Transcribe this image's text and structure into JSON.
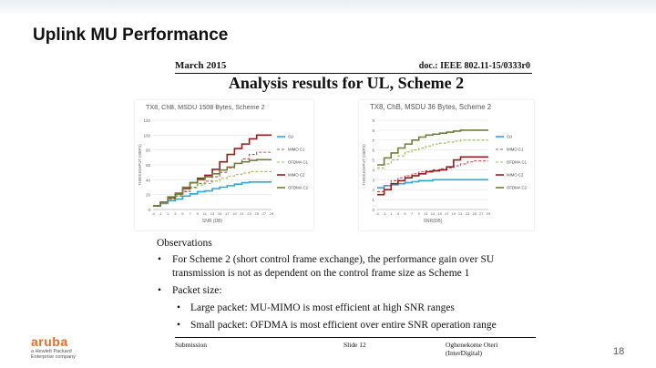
{
  "slide": {
    "title": "Uplink MU Performance",
    "page_number": "18",
    "logo": {
      "word": "aruba",
      "sub1": "a Hewlett Packard",
      "sub2": "Enterprise company"
    }
  },
  "doc": {
    "date": "March 2015",
    "doc_id": "doc.: IEEE 802.11-15/0333r0",
    "heading": "Analysis results for UL, Scheme 2",
    "footer": {
      "left": "Submission",
      "middle": "Slide 12",
      "right": "Oghenekome Oteri (InterDigital)"
    }
  },
  "observations": {
    "title": "Observations",
    "bullets": [
      {
        "text": "For Scheme 2 (short control frame exchange), the performance gain over SU transmission is not as dependent on the control frame size as Scheme 1"
      },
      {
        "text": "Packet size:"
      }
    ],
    "sub_bullets": [
      "Large packet: MU-MIMO is most efficient at high SNR ranges",
      "Small packet: OFDMA is most efficient over entire SNR operation range"
    ]
  },
  "colors": {
    "SU": "#2aa8df",
    "MIMO C1": "#c0504d",
    "OFDMA C1": "#9bbb59",
    "MIMO C2": "#9b1b1b",
    "OFDMA C2": "#6e7f3a"
  },
  "chart_data": [
    {
      "type": "line",
      "title": "TX8, ChB, MSDU 1508 Bytes, Scheme 2",
      "xlabel": "SNR (DB)",
      "ylabel": "THROUGHPUT (MBPS)",
      "x": [
        "-3",
        "-1",
        "1",
        "3",
        "5",
        "7",
        "9",
        "11",
        "13",
        "15",
        "17",
        "19",
        "21",
        "23",
        "25",
        "27",
        "29"
      ],
      "ylim": [
        0,
        120
      ],
      "yticks": [
        "0",
        "20",
        "40",
        "60",
        "80",
        "100",
        "120"
      ],
      "legend": "right",
      "series": [
        {
          "name": "SU",
          "values": [
            5,
            8,
            12,
            14,
            18,
            21,
            24,
            25,
            28,
            30,
            32,
            34,
            36,
            37,
            37,
            37,
            37
          ]
        },
        {
          "name": "MIMO C1",
          "values": [
            5,
            9,
            14,
            18,
            24,
            30,
            35,
            38,
            44,
            50,
            56,
            62,
            68,
            74,
            77,
            77,
            77
          ]
        },
        {
          "name": "OFDMA C1",
          "values": [
            5,
            9,
            15,
            19,
            25,
            29,
            33,
            35,
            38,
            42,
            45,
            47,
            49,
            51,
            51,
            51,
            51
          ]
        },
        {
          "name": "MIMO C2",
          "values": [
            5,
            10,
            16,
            21,
            28,
            36,
            42,
            46,
            54,
            64,
            74,
            82,
            88,
            95,
            100,
            100,
            100
          ]
        },
        {
          "name": "OFDMA C2",
          "values": [
            5,
            10,
            17,
            22,
            30,
            36,
            40,
            44,
            48,
            53,
            57,
            62,
            64,
            66,
            67,
            67,
            67
          ]
        }
      ]
    },
    {
      "type": "line",
      "title": "TX8, ChB, MSDU 36 Bytes, Scheme 2",
      "xlabel": "SNR(DB)",
      "ylabel": "THROUGHPUT (MBPS)",
      "x": [
        "-3",
        "-1",
        "1",
        "3",
        "5",
        "7",
        "9",
        "11",
        "13",
        "15",
        "17",
        "19",
        "21",
        "23",
        "25",
        "27",
        "29"
      ],
      "ylim": [
        0,
        9
      ],
      "yticks": [
        "0",
        "1",
        "2",
        "3",
        "4",
        "5",
        "6",
        "7",
        "8",
        "9"
      ],
      "legend": "right",
      "series": [
        {
          "name": "SU",
          "values": [
            2.2,
            2.4,
            2.5,
            2.6,
            2.7,
            2.8,
            2.9,
            2.9,
            3.0,
            3.0,
            3.0,
            3.0,
            3.0,
            3.0,
            3.0,
            3.0,
            3.0
          ]
        },
        {
          "name": "MIMO C1",
          "values": [
            1.8,
            2.4,
            2.9,
            3.2,
            3.4,
            3.6,
            3.8,
            3.9,
            4.0,
            4.1,
            4.2,
            4.4,
            4.6,
            4.8,
            4.9,
            4.9,
            4.9
          ]
        },
        {
          "name": "OFDMA C1",
          "values": [
            4.2,
            4.6,
            5.0,
            5.4,
            5.8,
            6.0,
            6.2,
            6.4,
            6.6,
            6.7,
            6.8,
            6.9,
            7.0,
            7.0,
            7.0,
            7.0,
            7.0
          ]
        },
        {
          "name": "MIMO C2",
          "values": [
            1.5,
            2.0,
            2.6,
            2.9,
            3.2,
            3.4,
            3.6,
            3.8,
            3.9,
            4.0,
            4.3,
            5.0,
            5.3,
            5.3,
            5.3,
            5.3,
            5.3
          ]
        },
        {
          "name": "OFDMA C2",
          "values": [
            4.5,
            5.2,
            5.7,
            6.2,
            6.6,
            7.0,
            7.3,
            7.5,
            7.6,
            7.7,
            7.8,
            7.9,
            8.0,
            8.0,
            8.0,
            8.0,
            8.0
          ]
        }
      ]
    }
  ]
}
